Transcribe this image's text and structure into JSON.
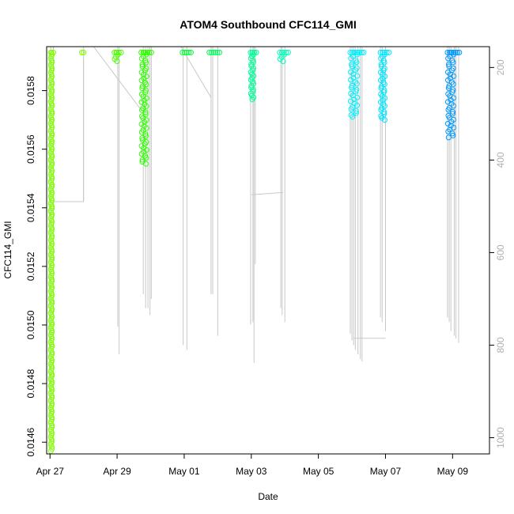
{
  "chart_data": {
    "type": "scatter",
    "title": "ATOM4 Southbound CFC114_GMI",
    "xlabel": "Date",
    "ylabel": "CFC114_GMI",
    "y2label": "",
    "xlim": [
      -0.1,
      13.1
    ],
    "ylim": [
      0.01456,
      0.01595
    ],
    "y2lim": [
      1035,
      155
    ],
    "x_ticks": [
      {
        "value": 0,
        "label": "Apr 27"
      },
      {
        "value": 2,
        "label": "Apr 29"
      },
      {
        "value": 4,
        "label": "May 01"
      },
      {
        "value": 6,
        "label": "May 03"
      },
      {
        "value": 8,
        "label": "May 05"
      },
      {
        "value": 10,
        "label": "May 07"
      },
      {
        "value": 12,
        "label": "May 09"
      }
    ],
    "y_ticks": [
      "0.0146",
      "0.0148",
      "0.0150",
      "0.0152",
      "0.0154",
      "0.0156",
      "0.0158"
    ],
    "y2_ticks": [
      "200",
      "400",
      "600",
      "800",
      "1000"
    ],
    "grid": false,
    "point_style": "open-circle",
    "pressure_line_color": "#c8c8c8",
    "series": [
      {
        "color": "#7fff00",
        "x_start": 0.02,
        "x_end": 0.1,
        "y_top": 0.01593,
        "y_bottom": 0.01457
      },
      {
        "color": "#7fff00",
        "x_start": 0.95,
        "x_end": 1.0,
        "y_top": 0.01593,
        "y_bottom": 0.01592
      },
      {
        "color": "#4cff00",
        "x_start": 1.92,
        "x_end": 2.12,
        "y_top": 0.01593,
        "y_bottom": 0.0159
      },
      {
        "color": "#2eff00",
        "x_start": 2.72,
        "x_end": 3.02,
        "y_top": 0.01593,
        "y_bottom": 0.01555
      },
      {
        "color": "#00ff33",
        "x_start": 3.95,
        "x_end": 4.2,
        "y_top": 0.01593,
        "y_bottom": 0.01592
      },
      {
        "color": "#00ff55",
        "x_start": 4.75,
        "x_end": 5.05,
        "y_top": 0.01593,
        "y_bottom": 0.01592
      },
      {
        "color": "#00ff99",
        "x_start": 5.98,
        "x_end": 6.15,
        "y_top": 0.01593,
        "y_bottom": 0.01577
      },
      {
        "color": "#00ffbb",
        "x_start": 6.85,
        "x_end": 7.1,
        "y_top": 0.01593,
        "y_bottom": 0.0159
      },
      {
        "color": "#00f0ff",
        "x_start": 8.95,
        "x_end": 9.35,
        "y_top": 0.01593,
        "y_bottom": 0.01571
      },
      {
        "color": "#00e6ff",
        "x_start": 9.85,
        "x_end": 10.1,
        "y_top": 0.01593,
        "y_bottom": 0.0157
      },
      {
        "color": "#0099ff",
        "x_start": 11.85,
        "x_end": 12.2,
        "y_top": 0.01593,
        "y_bottom": 0.01564
      }
    ],
    "pressure_spikes": [
      {
        "x": 0.02,
        "p": 960
      },
      {
        "x": 0.1,
        "p": 1010
      },
      {
        "x": 1.0,
        "p": 490
      },
      {
        "x": 2.02,
        "p": 760
      },
      {
        "x": 2.06,
        "p": 820
      },
      {
        "x": 2.78,
        "p": 690
      },
      {
        "x": 2.85,
        "p": 720
      },
      {
        "x": 2.92,
        "p": 720
      },
      {
        "x": 2.98,
        "p": 735
      },
      {
        "x": 3.02,
        "p": 700
      },
      {
        "x": 3.97,
        "p": 800
      },
      {
        "x": 4.08,
        "p": 810
      },
      {
        "x": 4.8,
        "p": 690
      },
      {
        "x": 4.85,
        "p": 690
      },
      {
        "x": 5.0,
        "p": 780
      },
      {
        "x": 5.98,
        "p": 755
      },
      {
        "x": 6.05,
        "p": 750
      },
      {
        "x": 6.08,
        "p": 838
      },
      {
        "x": 6.12,
        "p": 625
      },
      {
        "x": 6.88,
        "p": 720
      },
      {
        "x": 6.92,
        "p": 735
      },
      {
        "x": 7.0,
        "p": 750
      },
      {
        "x": 8.95,
        "p": 775
      },
      {
        "x": 9.0,
        "p": 790
      },
      {
        "x": 9.05,
        "p": 800
      },
      {
        "x": 9.1,
        "p": 810
      },
      {
        "x": 9.18,
        "p": 820
      },
      {
        "x": 9.25,
        "p": 830
      },
      {
        "x": 9.3,
        "p": 835
      },
      {
        "x": 9.85,
        "p": 740
      },
      {
        "x": 9.9,
        "p": 750
      },
      {
        "x": 10.0,
        "p": 770
      },
      {
        "x": 11.85,
        "p": 740
      },
      {
        "x": 11.9,
        "p": 750
      },
      {
        "x": 11.95,
        "p": 770
      },
      {
        "x": 12.05,
        "p": 780
      },
      {
        "x": 12.1,
        "p": 785
      },
      {
        "x": 12.18,
        "p": 795
      }
    ],
    "pressure_links": [
      [
        {
          "x": 0.1,
          "p": 490
        },
        {
          "x": 1.0,
          "p": 490
        },
        {
          "x": 1.0,
          "p": 180
        }
      ],
      [
        {
          "x": 1.3,
          "p": 155
        },
        {
          "x": 2.8,
          "p": 300
        }
      ],
      [
        {
          "x": 3.9,
          "p": 155
        },
        {
          "x": 4.8,
          "p": 265
        }
      ],
      [
        {
          "x": 6.0,
          "p": 475
        },
        {
          "x": 6.95,
          "p": 470
        }
      ],
      [
        {
          "x": 9.05,
          "p": 785
        },
        {
          "x": 10.0,
          "p": 785
        }
      ]
    ]
  }
}
